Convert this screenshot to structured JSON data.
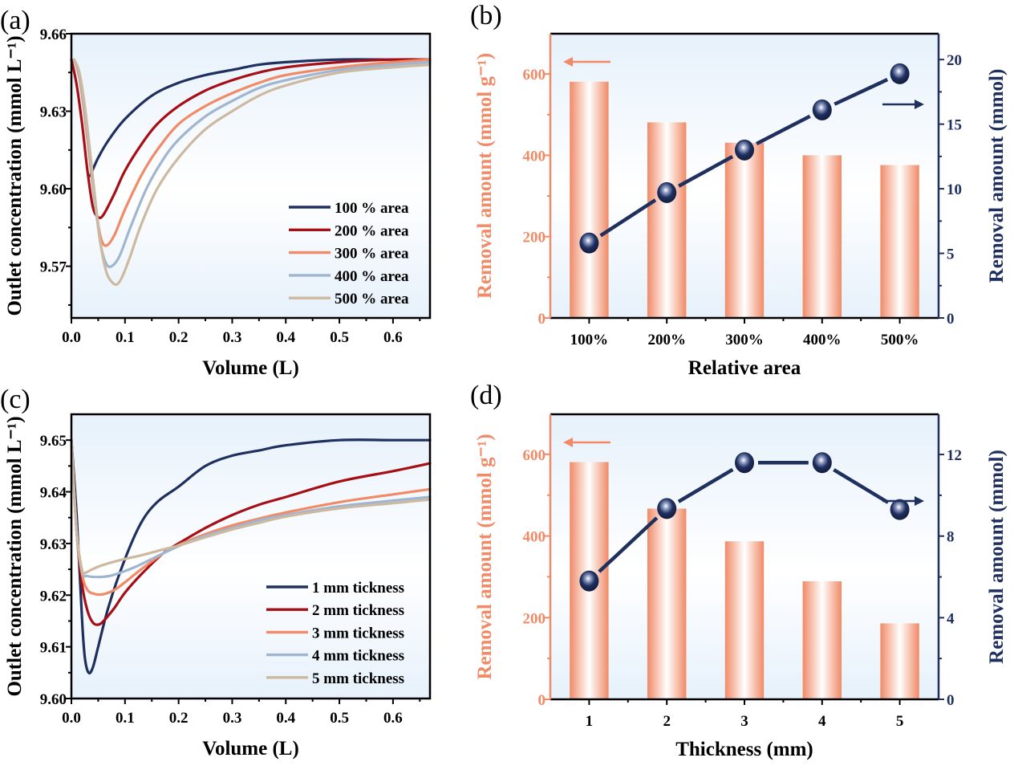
{
  "chart_data": [
    {
      "panel": "(a)",
      "type": "line",
      "xlabel": "Volume (L)",
      "ylabel": "Outlet concentration (mmol L⁻¹)",
      "xlim": [
        0,
        0.669
      ],
      "ylim": [
        9.55,
        9.66
      ],
      "xticks": [
        "0.0",
        "0.1",
        "0.2",
        "0.3",
        "0.4",
        "0.5",
        "0.6"
      ],
      "yticks": [
        "9.57",
        "9.60",
        "9.63",
        "9.66"
      ],
      "legend_position": "lower-right",
      "series": [
        {
          "name": "100 % area",
          "color": "#1f2f5e",
          "x": [
            0.035,
            0.05,
            0.07,
            0.1,
            0.15,
            0.2,
            0.25,
            0.3,
            0.35,
            0.4,
            0.5,
            0.6,
            0.669
          ],
          "y": [
            9.605,
            9.612,
            9.619,
            9.627,
            9.636,
            9.641,
            9.644,
            9.646,
            9.648,
            9.649,
            9.65,
            9.65,
            9.65
          ]
        },
        {
          "name": "200 % area",
          "color": "#a50f15",
          "x": [
            0.0,
            0.01,
            0.02,
            0.03,
            0.04,
            0.05,
            0.06,
            0.08,
            0.1,
            0.13,
            0.16,
            0.2,
            0.25,
            0.3,
            0.35,
            0.4,
            0.5,
            0.6,
            0.669
          ],
          "y": [
            9.65,
            9.64,
            9.625,
            9.607,
            9.593,
            9.589,
            9.59,
            9.598,
            9.607,
            9.617,
            9.625,
            9.632,
            9.638,
            9.642,
            9.645,
            9.647,
            9.649,
            9.65,
            9.65
          ]
        },
        {
          "name": "300 % area",
          "color": "#f08a67",
          "x": [
            0.005,
            0.015,
            0.025,
            0.035,
            0.045,
            0.055,
            0.065,
            0.08,
            0.1,
            0.13,
            0.16,
            0.2,
            0.25,
            0.3,
            0.35,
            0.4,
            0.5,
            0.6,
            0.669
          ],
          "y": [
            9.65,
            9.643,
            9.628,
            9.61,
            9.593,
            9.581,
            9.578,
            9.582,
            9.592,
            9.605,
            9.615,
            9.625,
            9.632,
            9.637,
            9.641,
            9.644,
            9.647,
            9.649,
            9.65
          ]
        },
        {
          "name": "400 % area",
          "color": "#9fb5d0",
          "x": [
            0.005,
            0.015,
            0.025,
            0.035,
            0.045,
            0.055,
            0.065,
            0.075,
            0.09,
            0.11,
            0.14,
            0.17,
            0.2,
            0.25,
            0.3,
            0.35,
            0.4,
            0.5,
            0.6,
            0.669
          ],
          "y": [
            9.65,
            9.644,
            9.63,
            9.612,
            9.593,
            9.578,
            9.571,
            9.57,
            9.574,
            9.585,
            9.6,
            9.611,
            9.619,
            9.628,
            9.634,
            9.639,
            9.642,
            9.646,
            9.648,
            9.649
          ]
        },
        {
          "name": "500 % area",
          "color": "#cdb9a0",
          "x": [
            0.005,
            0.015,
            0.025,
            0.035,
            0.045,
            0.055,
            0.065,
            0.075,
            0.085,
            0.095,
            0.11,
            0.13,
            0.16,
            0.2,
            0.25,
            0.3,
            0.35,
            0.4,
            0.5,
            0.6,
            0.669
          ],
          "y": [
            9.65,
            9.645,
            9.632,
            9.614,
            9.595,
            9.578,
            9.568,
            9.564,
            9.563,
            9.566,
            9.574,
            9.586,
            9.6,
            9.612,
            9.623,
            9.63,
            9.636,
            9.64,
            9.645,
            9.647,
            9.648
          ]
        }
      ]
    },
    {
      "panel": "(b)",
      "type": "bar",
      "xlabel": "Relative area",
      "ylabel_left": "Removal amount (mmol g⁻¹)",
      "ylabel_right": "Removal amount (mmol)",
      "categories": [
        "100%",
        "200%",
        "300%",
        "400%",
        "500%"
      ],
      "ylim_left": [
        0,
        699
      ],
      "ylim_right": [
        0,
        22
      ],
      "yticks_left": [
        "0",
        "200",
        "400",
        "600"
      ],
      "yticks_right": [
        "0",
        "5",
        "10",
        "15",
        "20"
      ],
      "series": [
        {
          "name": "Removal amount (mmol g⁻¹)",
          "axis": "left",
          "type": "bar",
          "color": "#f08a67",
          "values": [
            581,
            481,
            431,
            400,
            376
          ]
        },
        {
          "name": "Removal amount (mmol)",
          "axis": "right",
          "type": "line",
          "color": "#1f2f5e",
          "values": [
            5.8,
            9.7,
            13.0,
            16.1,
            18.9
          ]
        }
      ]
    },
    {
      "panel": "(c)",
      "type": "line",
      "xlabel": "Volume (L)",
      "ylabel": "Outlet concentration (mmol L⁻¹)",
      "xlim": [
        0,
        0.669
      ],
      "ylim": [
        9.6,
        9.655
      ],
      "xticks": [
        "0.0",
        "0.1",
        "0.2",
        "0.3",
        "0.4",
        "0.5",
        "0.6"
      ],
      "yticks": [
        "9.60",
        "9.61",
        "9.62",
        "9.63",
        "9.64",
        "9.65"
      ],
      "legend_position": "lower-right",
      "series": [
        {
          "name": "1 mm tickness",
          "color": "#1f2f5e",
          "x": [
            0.0,
            0.01,
            0.02,
            0.025,
            0.032,
            0.04,
            0.05,
            0.07,
            0.1,
            0.13,
            0.16,
            0.2,
            0.25,
            0.3,
            0.35,
            0.4,
            0.5,
            0.6,
            0.669
          ],
          "y": [
            9.65,
            9.635,
            9.615,
            9.608,
            9.605,
            9.606,
            9.61,
            9.618,
            9.627,
            9.634,
            9.638,
            9.641,
            9.645,
            9.647,
            9.648,
            9.649,
            9.65,
            9.65,
            9.65
          ]
        },
        {
          "name": "2 mm tickness",
          "color": "#a50f15",
          "x": [
            0.0,
            0.01,
            0.02,
            0.03,
            0.04,
            0.05,
            0.06,
            0.08,
            0.1,
            0.13,
            0.17,
            0.2,
            0.25,
            0.3,
            0.35,
            0.4,
            0.5,
            0.6,
            0.669
          ],
          "y": [
            9.65,
            9.632,
            9.622,
            9.617,
            9.6147,
            9.6143,
            9.615,
            9.6175,
            9.6205,
            9.624,
            9.628,
            9.63,
            9.633,
            9.6355,
            9.6375,
            9.639,
            9.642,
            9.644,
            9.6455
          ]
        },
        {
          "name": "3 mm tickness",
          "color": "#f08a67",
          "x": [
            0.0,
            0.01,
            0.02,
            0.03,
            0.045,
            0.06,
            0.08,
            0.1,
            0.13,
            0.17,
            0.2,
            0.25,
            0.3,
            0.35,
            0.4,
            0.5,
            0.6,
            0.669
          ],
          "y": [
            9.65,
            9.632,
            9.624,
            9.621,
            9.6202,
            9.6202,
            9.621,
            9.6225,
            9.625,
            9.628,
            9.6297,
            9.6318,
            9.6335,
            9.6348,
            9.636,
            9.638,
            9.6395,
            9.6405
          ]
        },
        {
          "name": "4 mm tickness",
          "color": "#9fb5d0",
          "x": [
            0.0,
            0.01,
            0.02,
            0.03,
            0.05,
            0.07,
            0.09,
            0.12,
            0.15,
            0.2,
            0.25,
            0.3,
            0.35,
            0.4,
            0.5,
            0.6,
            0.669
          ],
          "y": [
            9.65,
            9.632,
            9.6245,
            9.6237,
            9.6235,
            9.6237,
            9.6243,
            9.6255,
            9.627,
            9.6295,
            9.6315,
            9.633,
            9.6345,
            9.6355,
            9.6372,
            9.6383,
            9.639
          ]
        },
        {
          "name": "5 mm tickness",
          "color": "#cdb9a0",
          "x": [
            0.0,
            0.01,
            0.02,
            0.025,
            0.035,
            0.05,
            0.07,
            0.1,
            0.13,
            0.17,
            0.2,
            0.25,
            0.3,
            0.35,
            0.4,
            0.5,
            0.6,
            0.669
          ],
          "y": [
            9.65,
            9.632,
            9.6248,
            9.6243,
            9.6248,
            9.6255,
            9.6262,
            9.627,
            9.6277,
            9.6288,
            9.6296,
            9.6312,
            9.6327,
            9.634,
            9.6352,
            9.6368,
            9.6378,
            9.6385
          ]
        }
      ]
    },
    {
      "panel": "(d)",
      "type": "bar",
      "xlabel": "Thickness (mm)",
      "ylabel_left": "Removal amount (mmol g⁻¹)",
      "ylabel_right": "Removal amount (mmol)",
      "categories": [
        "1",
        "2",
        "3",
        "4",
        "5"
      ],
      "ylim_left": [
        0,
        698
      ],
      "ylim_right": [
        0,
        13.97
      ],
      "yticks_left": [
        "0",
        "200",
        "400",
        "600"
      ],
      "yticks_right": [
        "0",
        "4",
        "8",
        "12"
      ],
      "series": [
        {
          "name": "Removal amount (mmol g⁻¹)",
          "axis": "left",
          "type": "bar",
          "color": "#f08a67",
          "values": [
            581,
            467,
            387,
            289,
            186
          ]
        },
        {
          "name": "Removal amount (mmol)",
          "axis": "right",
          "type": "line",
          "color": "#1f2f5e",
          "values": [
            5.8,
            9.35,
            11.6,
            11.6,
            9.3
          ]
        }
      ]
    }
  ]
}
